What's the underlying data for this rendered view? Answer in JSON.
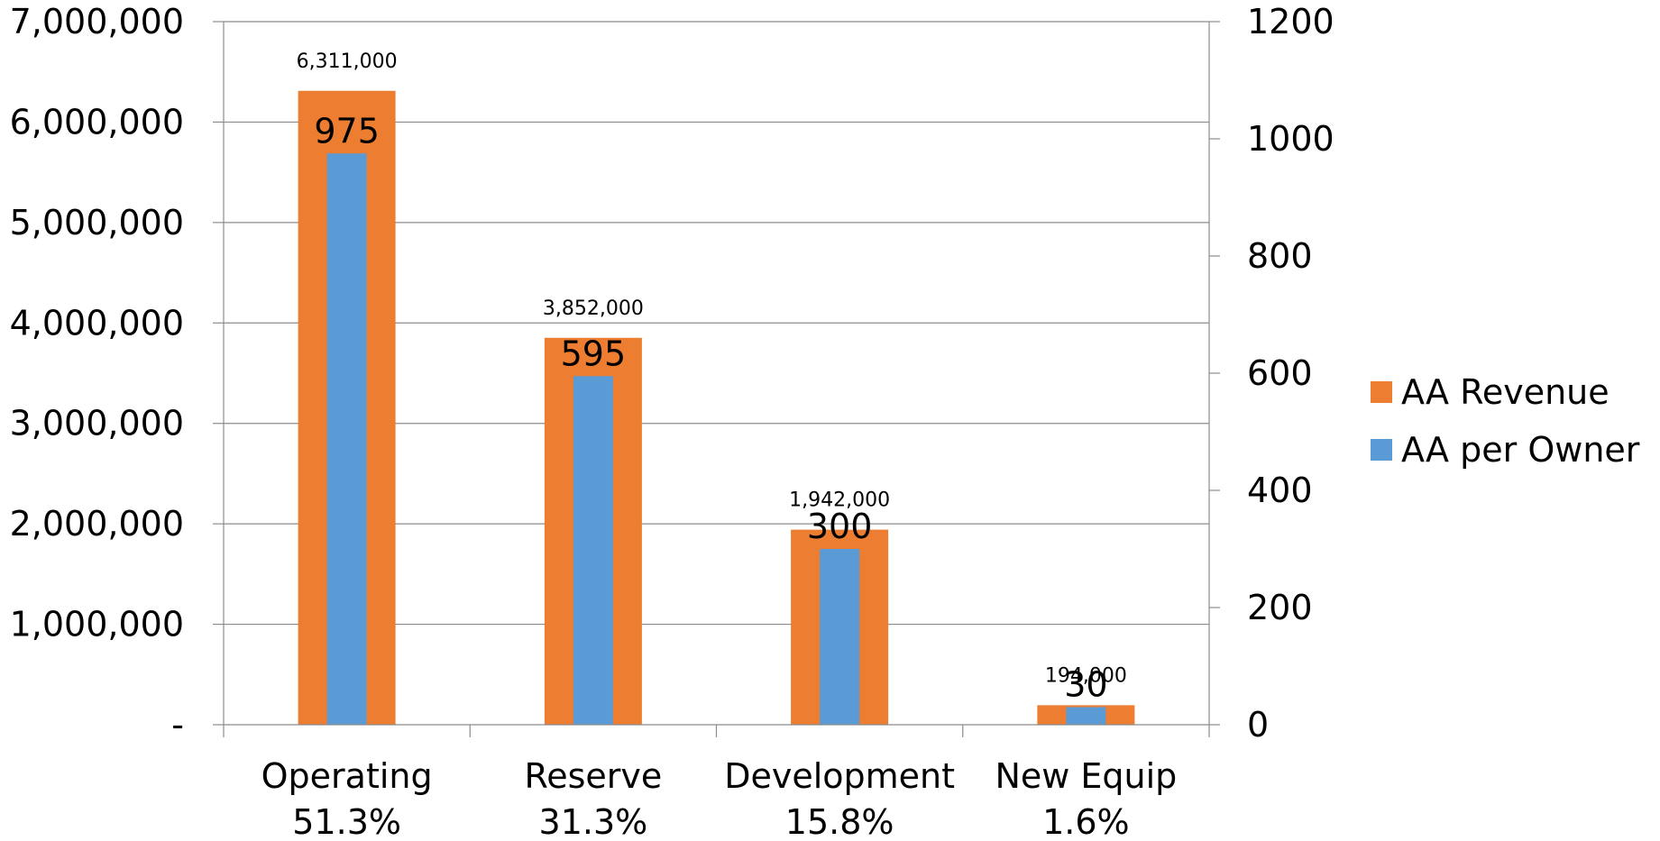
{
  "chart_data": {
    "type": "bar",
    "categories": [
      "Operating",
      "Reserve",
      "Development",
      "New Equip"
    ],
    "category_subtitles": [
      "51.3%",
      "31.3%",
      "15.8%",
      "1.6%"
    ],
    "series": [
      {
        "name": "AA Revenue",
        "axis": "left",
        "color": "#ED7D31",
        "values": [
          6311000,
          3852000,
          1942000,
          194000
        ],
        "labels": [
          "6,311,000",
          "3,852,000",
          "1,942,000",
          "194,000"
        ]
      },
      {
        "name": "AA per Owner",
        "axis": "right",
        "color": "#5B9BD5",
        "values": [
          975,
          595,
          300,
          30
        ],
        "labels": [
          "975",
          "595",
          "300",
          "30"
        ]
      }
    ],
    "y_left": {
      "ylim": [
        0,
        7000000
      ],
      "ticks": [
        0,
        1000000,
        2000000,
        3000000,
        4000000,
        5000000,
        6000000,
        7000000
      ],
      "tick_labels": [
        "-",
        "1,000,000",
        "2,000,000",
        "3,000,000",
        "4,000,000",
        "5,000,000",
        "6,000,000",
        "7,000,000"
      ]
    },
    "y_right": {
      "ylim": [
        0,
        1200
      ],
      "ticks": [
        0,
        200,
        400,
        600,
        800,
        1000,
        1200
      ],
      "tick_labels": [
        "0",
        "200",
        "400",
        "600",
        "800",
        "1000",
        "1200"
      ]
    },
    "grid": true,
    "legend": "right",
    "title": "",
    "xlabel": "",
    "ylabel": ""
  }
}
